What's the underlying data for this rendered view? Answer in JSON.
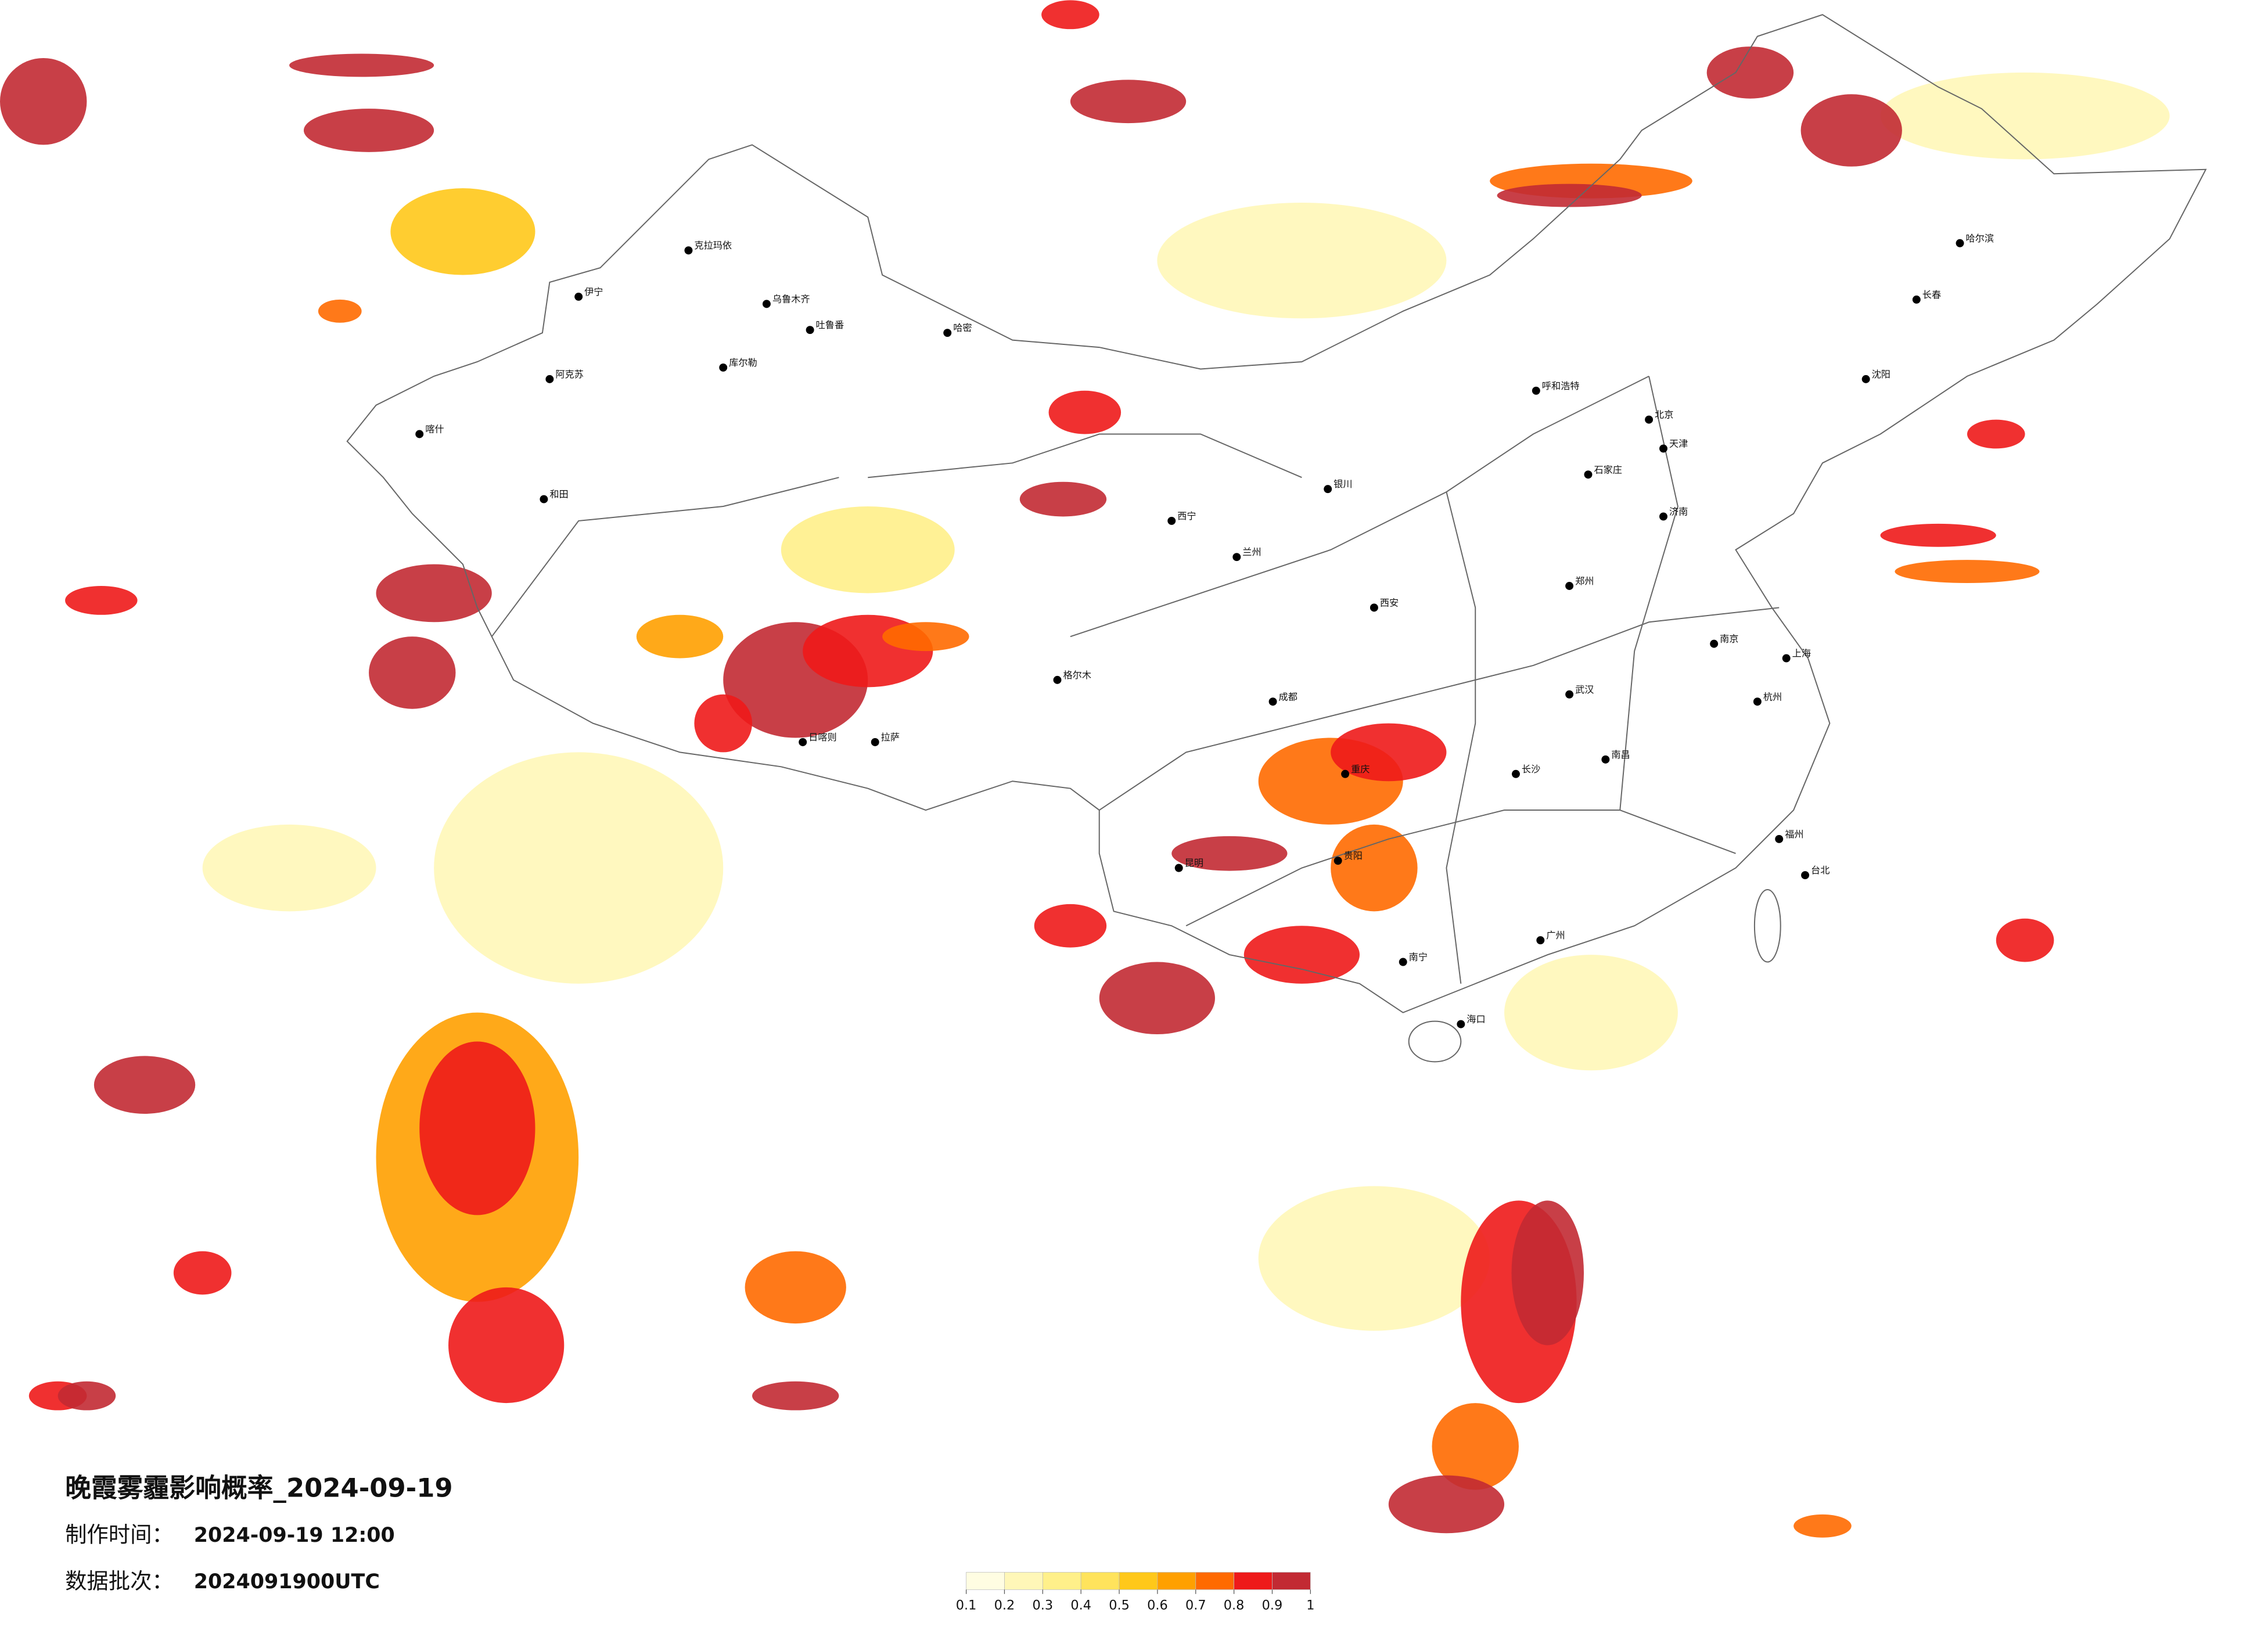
{
  "title": "晚霞雾霾影响概率_2024-09-19",
  "info": [
    {
      "label": "制作时间：",
      "value": "2024-09-19 12:00"
    },
    {
      "label": "数据批次：",
      "value": "2024091900UTC"
    }
  ],
  "legend": {
    "colors": [
      "#fffde2",
      "#fff7b8",
      "#fff08a",
      "#ffe35c",
      "#ffc81a",
      "#ffa000",
      "#ff6a00",
      "#ee1a1a",
      "#c22a33"
    ],
    "ticks": [
      0.1,
      0.2,
      0.3,
      0.4,
      0.5,
      0.6,
      0.7,
      0.8,
      0.9,
      1
    ]
  },
  "cities": [
    "克拉玛依",
    "乌鲁木齐",
    "伊宁",
    "喀什",
    "和田",
    "阿克苏",
    "库尔勒",
    "哈密",
    "吐鲁番",
    "拉萨",
    "日喀则",
    "格尔木",
    "呼和浩特",
    "北京",
    "天津",
    "石家庄",
    "济南",
    "郑州",
    "武汉",
    "长沙",
    "南昌",
    "福州",
    "广州",
    "南宁",
    "昆明",
    "成都",
    "重庆",
    "贵阳",
    "西安",
    "兰州",
    "西宁",
    "银川",
    "哈尔滨",
    "长春",
    "沈阳",
    "上海",
    "南京",
    "杭州",
    "海口",
    "台北"
  ]
}
